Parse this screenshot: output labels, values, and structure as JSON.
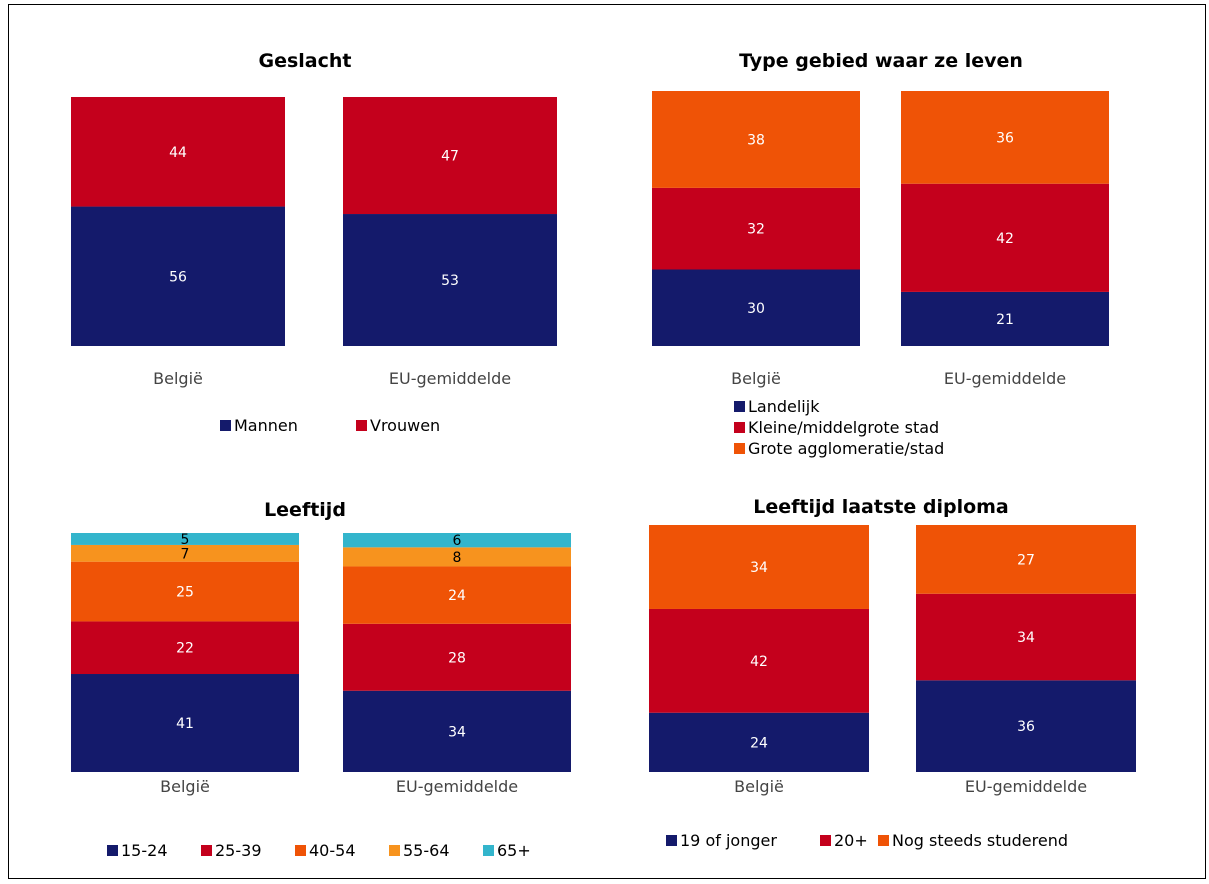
{
  "chart_data": [
    {
      "type": "bar",
      "stacked": true,
      "title": "Geslacht",
      "categories": [
        "België",
        "EU-gemiddelde"
      ],
      "series": [
        {
          "name": "Mannen",
          "color": "#141a6b",
          "values": [
            56,
            53
          ]
        },
        {
          "name": "Vrouwen",
          "color": "#c4001c",
          "values": [
            44,
            47
          ]
        }
      ],
      "legend_layout": "row"
    },
    {
      "type": "bar",
      "stacked": true,
      "title": "Type gebied waar ze leven",
      "categories": [
        "België",
        "EU-gemiddelde"
      ],
      "series": [
        {
          "name": "Landelijk",
          "color": "#141a6b",
          "values": [
            30,
            21
          ]
        },
        {
          "name": "Kleine/middelgrote stad",
          "color": "#c4001c",
          "values": [
            32,
            42
          ]
        },
        {
          "name": "Grote agglomeratie/stad",
          "color": "#ef5306",
          "values": [
            38,
            36
          ]
        }
      ],
      "legend_layout": "column"
    },
    {
      "type": "bar",
      "stacked": true,
      "title": "Leeftijd",
      "categories": [
        "België",
        "EU-gemiddelde"
      ],
      "series": [
        {
          "name": "15-24",
          "color": "#141a6b",
          "values": [
            41,
            34
          ]
        },
        {
          "name": "25-39",
          "color": "#c4001c",
          "values": [
            22,
            28
          ]
        },
        {
          "name": "40-54",
          "color": "#ef5306",
          "values": [
            25,
            24
          ]
        },
        {
          "name": "55-64",
          "color": "#f7931e",
          "values": [
            7,
            8
          ]
        },
        {
          "name": "65+",
          "color": "#33b5cc",
          "values": [
            5,
            6
          ]
        }
      ],
      "legend_layout": "row"
    },
    {
      "type": "bar",
      "stacked": true,
      "title": "Leeftijd laatste diploma",
      "categories": [
        "België",
        "EU-gemiddelde"
      ],
      "series": [
        {
          "name": "19 of jonger",
          "color": "#141a6b",
          "values": [
            24,
            36
          ]
        },
        {
          "name": "20+",
          "color": "#c4001c",
          "values": [
            42,
            34
          ]
        },
        {
          "name": "Nog steeds studerend",
          "color": "#ef5306",
          "values": [
            34,
            27
          ]
        }
      ],
      "legend_layout": "row"
    }
  ]
}
